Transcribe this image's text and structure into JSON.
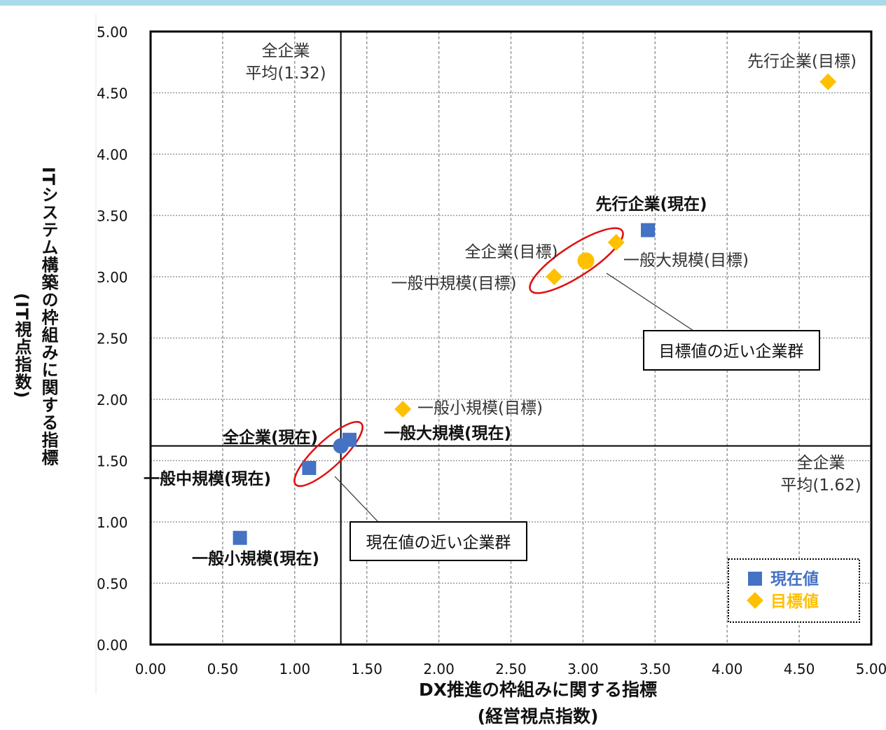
{
  "chart_data": {
    "type": "scatter",
    "xlabel": "DX推進の枠組みに関する指標",
    "xlabel_sub": "(経営視点指数)",
    "ylabel": "ITシステム構築の枠組みに関する指標",
    "ylabel_sub": "(IT視点指数)",
    "xlim": [
      0,
      5
    ],
    "ylim": [
      0,
      5
    ],
    "x_ticks": [
      "0.00",
      "0.50",
      "1.00",
      "1.50",
      "2.00",
      "2.50",
      "3.00",
      "3.50",
      "4.00",
      "4.50",
      "5.00"
    ],
    "y_ticks": [
      "0.00",
      "0.50",
      "1.00",
      "1.50",
      "2.00",
      "2.50",
      "3.00",
      "3.50",
      "4.00",
      "4.50",
      "5.00"
    ],
    "grid": true,
    "legend_position": "bottom-right",
    "series": [
      {
        "name": "現在値",
        "color": "#4472c4",
        "marker": "square",
        "points": [
          {
            "label": "先行企業(現在)",
            "x": 3.45,
            "y": 3.38
          },
          {
            "label": "一般大規模(現在)",
            "x": 1.38,
            "y": 1.67
          },
          {
            "label": "全企業(現在)",
            "x": 1.32,
            "y": 1.62
          },
          {
            "label": "一般中規模(現在)",
            "x": 1.1,
            "y": 1.44
          },
          {
            "label": "一般小規模(現在)",
            "x": 0.62,
            "y": 0.87
          }
        ]
      },
      {
        "name": "目標値",
        "color": "#ffc000",
        "marker": "diamond",
        "points": [
          {
            "label": "先行企業(目標)",
            "x": 4.7,
            "y": 4.59
          },
          {
            "label": "一般大規模(目標)",
            "x": 3.23,
            "y": 3.28
          },
          {
            "label": "全企業(目標)",
            "x": 3.02,
            "y": 3.13
          },
          {
            "label": "一般中規模(目標)",
            "x": 2.8,
            "y": 3.0
          },
          {
            "label": "一般小規模(目標)",
            "x": 1.75,
            "y": 1.92
          }
        ]
      }
    ],
    "reference_lines": [
      {
        "axis": "x",
        "value": 1.32,
        "label_line1": "全企業",
        "label_line2": "平均(1.32)"
      },
      {
        "axis": "y",
        "value": 1.62,
        "label_line1": "全企業",
        "label_line2": "平均(1.62)"
      }
    ],
    "callouts": [
      {
        "text": "目標値の近い企業群"
      },
      {
        "text": "現在値の近い企業群"
      }
    ]
  }
}
